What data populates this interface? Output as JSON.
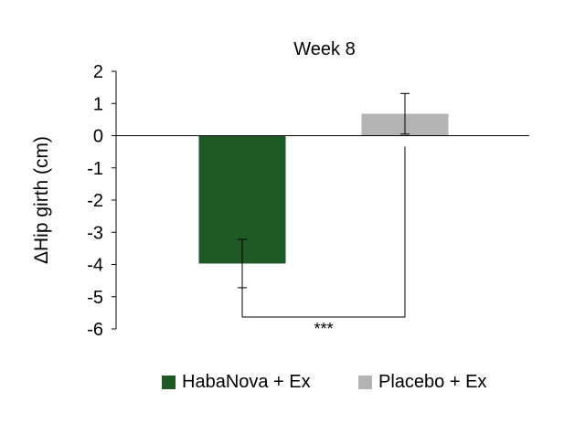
{
  "chart_data": {
    "type": "bar",
    "title": "Week 8",
    "ylabel": "ΔHip girth (cm)",
    "xlabel": "",
    "ylim": [
      -6,
      2
    ],
    "yticks": [
      2,
      1,
      0,
      -1,
      -2,
      -3,
      -4,
      -5,
      -6
    ],
    "categories": [
      "HabaNova + Ex",
      "Placebo + Ex"
    ],
    "values": [
      -3.97,
      0.68
    ],
    "error": [
      0.75,
      0.63
    ],
    "colors": [
      "#1e5a24",
      "#b3b3b3"
    ],
    "significance": {
      "label": "***",
      "between": [
        "HabaNova + Ex",
        "Placebo + Ex"
      ]
    },
    "legend": {
      "position": "bottom",
      "entries": [
        "HabaNova + Ex",
        "Placebo + Ex"
      ]
    }
  }
}
